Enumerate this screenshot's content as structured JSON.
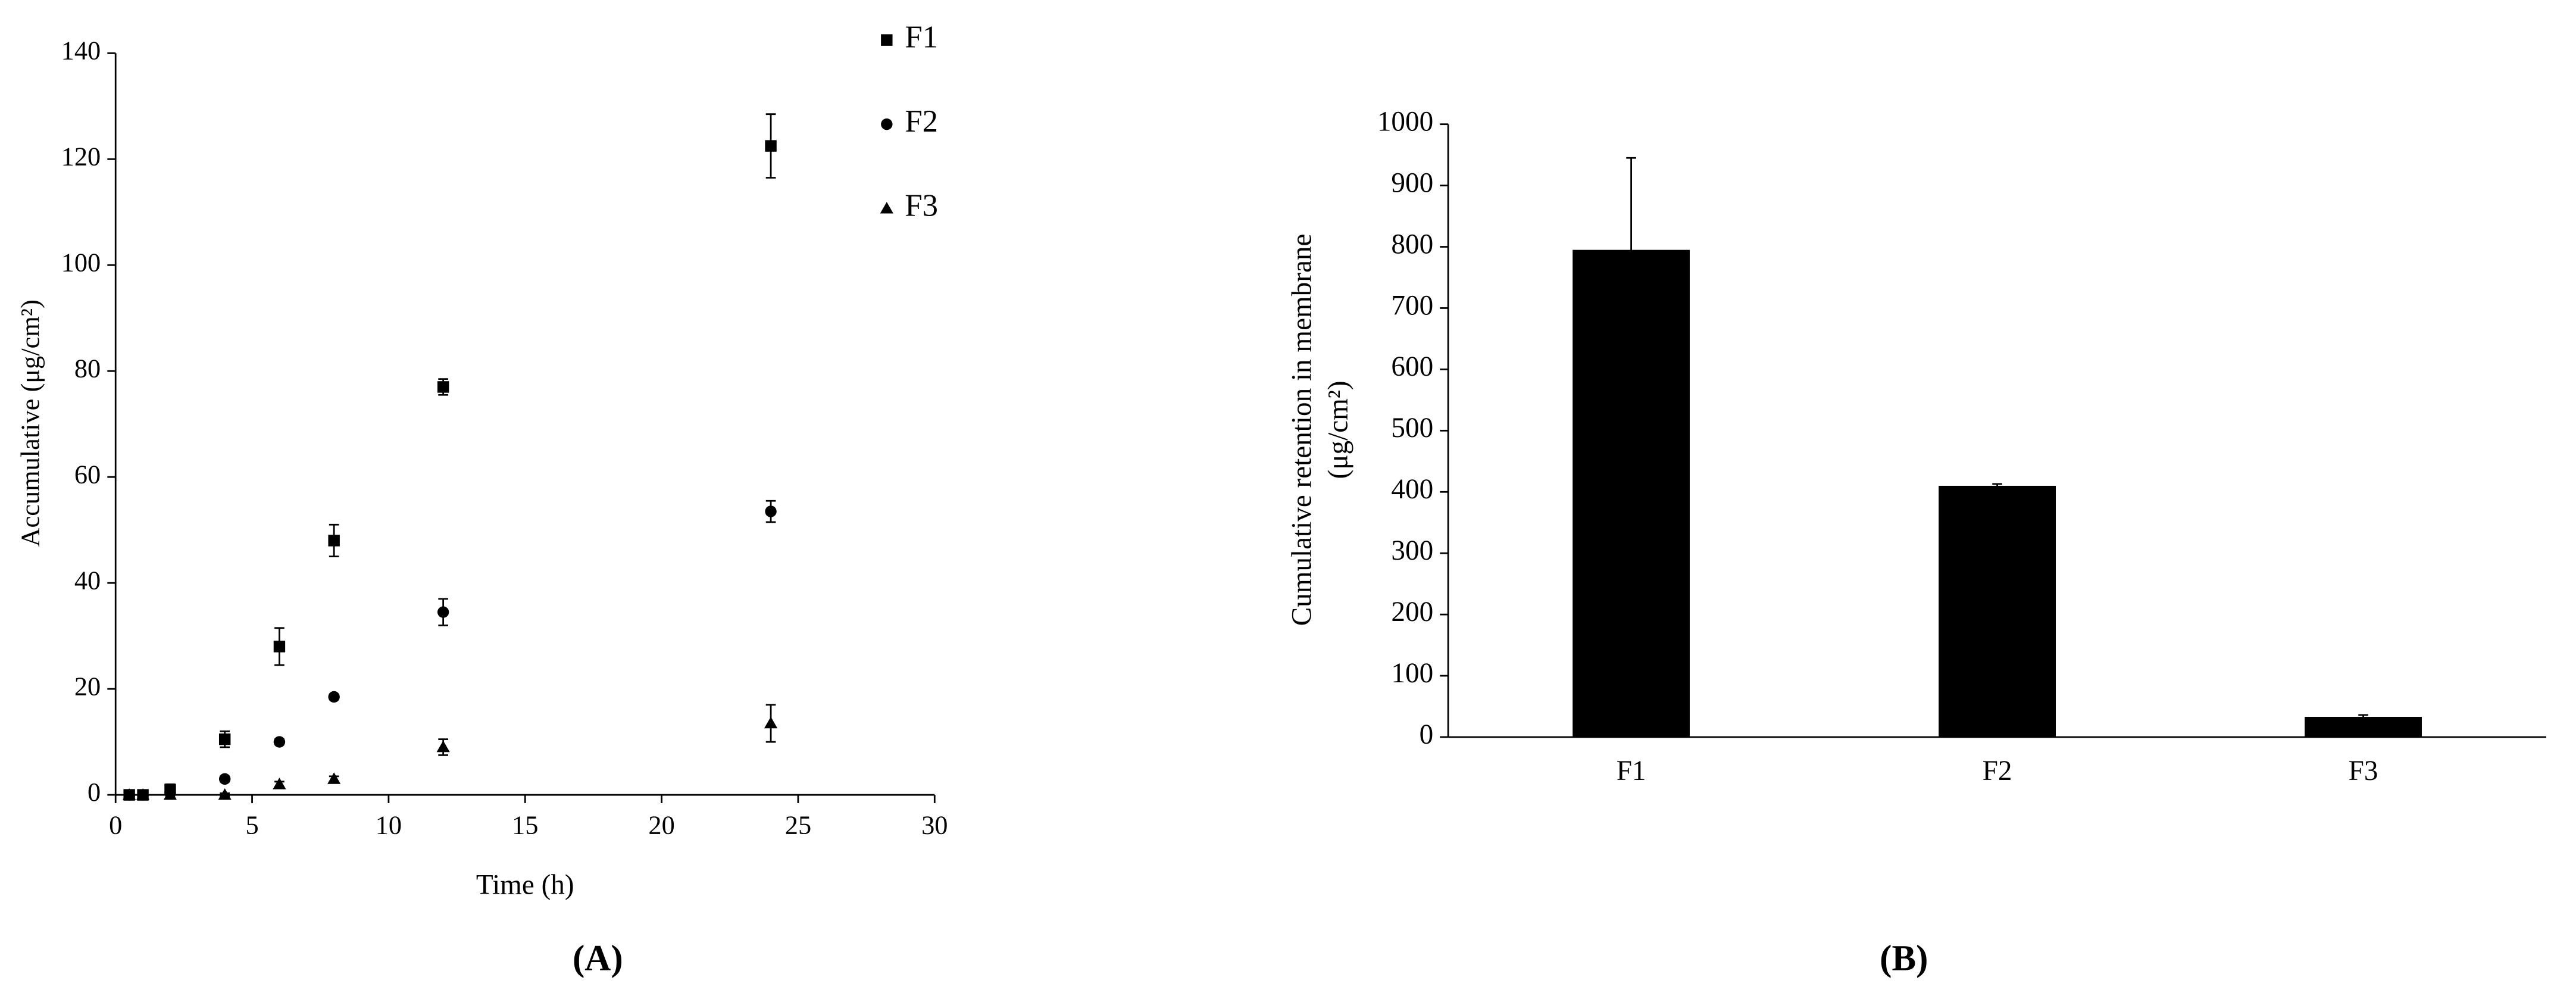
{
  "chart_data": [
    {
      "type": "scatter",
      "caption": "(A)",
      "xlabel": "Time (h)",
      "ylabel": "Accumulative (μg/cm²)",
      "xlim": [
        0,
        30
      ],
      "xticks": [
        0,
        5,
        10,
        15,
        20,
        25,
        30
      ],
      "ylim": [
        0,
        140
      ],
      "yticks": [
        0,
        20,
        40,
        60,
        80,
        100,
        120,
        140
      ],
      "legend": "upper right",
      "series": [
        {
          "name": "F1",
          "marker": "square",
          "color": "#000000",
          "x": [
            0.5,
            1,
            2,
            4,
            6,
            8,
            12,
            24
          ],
          "values": [
            0,
            0,
            1,
            10.5,
            28,
            48,
            77,
            122.5
          ],
          "errors": [
            0.3,
            0.3,
            1,
            1.5,
            3.5,
            3,
            1.5,
            6
          ]
        },
        {
          "name": "F2",
          "marker": "circle",
          "color": "#000000",
          "x": [
            0.5,
            1,
            2,
            4,
            6,
            8,
            12,
            24
          ],
          "values": [
            0,
            0,
            0.5,
            3,
            10,
            18.5,
            34.5,
            53.5
          ],
          "errors": [
            0.3,
            0.3,
            0.5,
            0.5,
            0.5,
            0.5,
            2.5,
            2
          ]
        },
        {
          "name": "F3",
          "marker": "triangle",
          "color": "#000000",
          "x": [
            0.5,
            1,
            2,
            4,
            6,
            8,
            12,
            24
          ],
          "values": [
            0,
            0,
            0,
            0,
            2,
            3,
            9,
            13.5
          ],
          "errors": [
            0.3,
            0.3,
            0.3,
            0.3,
            0.5,
            0.5,
            1.5,
            3.5
          ]
        }
      ]
    },
    {
      "type": "bar",
      "caption": "(B)",
      "ylabel": [
        "Cumulative retention in membrane",
        "(μg/cm²)"
      ],
      "categories": [
        "F1",
        "F2",
        "F3"
      ],
      "values": [
        795,
        410,
        33
      ],
      "errors": [
        150,
        3,
        3
      ],
      "color": "#000000",
      "ylim": [
        0,
        1000
      ],
      "yticks": [
        0,
        100,
        200,
        300,
        400,
        500,
        600,
        700,
        800,
        900,
        1000
      ]
    }
  ]
}
